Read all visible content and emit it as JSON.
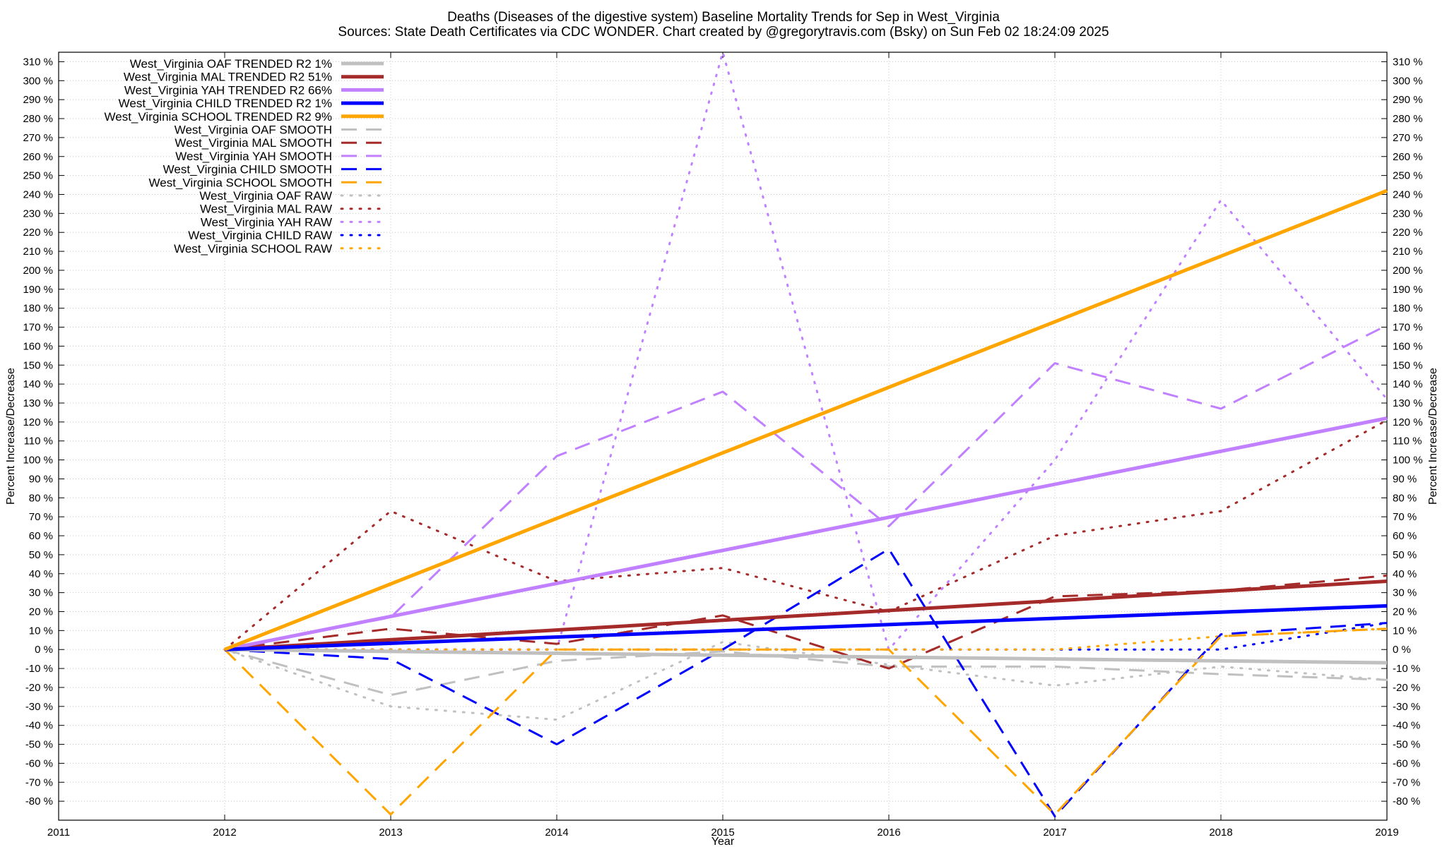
{
  "header": {
    "title_line1": "Deaths (Diseases of the digestive system)  Baseline Mortality Trends for Sep in West_Virginia",
    "title_line2": "Sources: State Death Certificates via CDC WONDER.                 Chart created by @gregorytravis.com (Bsky) on Sun Feb 02 18:24:09 2025"
  },
  "chart_data": {
    "type": "line",
    "xlabel": "Year",
    "ylabel": "Percent Increase/Decrease",
    "ylabel_right": "Percent Increase/Decrease",
    "xlim": [
      2011,
      2019
    ],
    "ylim": [
      -90,
      315
    ],
    "x_ticks": [
      2011,
      2012,
      2013,
      2014,
      2015,
      2016,
      2017,
      2018,
      2019
    ],
    "y_ticks": [
      -80,
      -70,
      -60,
      -50,
      -40,
      -30,
      -20,
      -10,
      0,
      10,
      20,
      30,
      40,
      50,
      60,
      70,
      80,
      90,
      100,
      110,
      120,
      130,
      140,
      150,
      160,
      170,
      180,
      190,
      200,
      210,
      220,
      230,
      240,
      250,
      260,
      270,
      280,
      290,
      300,
      310
    ],
    "y_tick_suffix": " %",
    "grid": true,
    "legend_position": "top-left",
    "series": [
      {
        "name": "West_Virginia OAF TRENDED R2  1%",
        "color": "#c0c0c0",
        "style": "solid",
        "x": [
          2012,
          2019
        ],
        "y": [
          0,
          -7
        ]
      },
      {
        "name": "West_Virginia MAL TRENDED R2  51%",
        "color": "#a52a2a",
        "style": "solid",
        "x": [
          2012,
          2019
        ],
        "y": [
          0,
          36
        ]
      },
      {
        "name": "West_Virginia YAH TRENDED R2  66%",
        "color": "#c080ff",
        "style": "solid",
        "x": [
          2012,
          2019
        ],
        "y": [
          0,
          122
        ]
      },
      {
        "name": "West_Virginia CHILD TRENDED R2  1%",
        "color": "#0000ff",
        "style": "solid",
        "x": [
          2012,
          2019
        ],
        "y": [
          0,
          23
        ]
      },
      {
        "name": "West_Virginia SCHOOL TRENDED R2  9%",
        "color": "#ffa500",
        "style": "solid",
        "x": [
          2012,
          2019
        ],
        "y": [
          0,
          242
        ]
      },
      {
        "name": "West_Virginia OAF SMOOTH",
        "color": "#c0c0c0",
        "style": "dashed",
        "x": [
          2012,
          2013,
          2014,
          2015,
          2016,
          2017,
          2018,
          2019
        ],
        "y": [
          0,
          -24,
          -6,
          -1,
          -9,
          -9,
          -13,
          -16
        ]
      },
      {
        "name": "West_Virginia MAL SMOOTH",
        "color": "#a52a2a",
        "style": "dashed",
        "x": [
          2012,
          2013,
          2014,
          2015,
          2016,
          2017,
          2018,
          2019
        ],
        "y": [
          0,
          11,
          3,
          18,
          -10,
          28,
          31,
          39
        ]
      },
      {
        "name": "West_Virginia YAH SMOOTH",
        "color": "#c080ff",
        "style": "dashed",
        "x": [
          2012,
          2013,
          2014,
          2015,
          2016,
          2017,
          2018,
          2019
        ],
        "y": [
          0,
          17,
          102,
          136,
          65,
          151,
          127,
          171
        ]
      },
      {
        "name": "West_Virginia CHILD SMOOTH",
        "color": "#0000ff",
        "style": "dashed",
        "x": [
          2012,
          2013,
          2014,
          2015,
          2016,
          2017,
          2018,
          2019
        ],
        "y": [
          0,
          -5,
          -50,
          0,
          53,
          -88,
          8,
          14
        ]
      },
      {
        "name": "West_Virginia SCHOOL SMOOTH",
        "color": "#ffa500",
        "style": "dashed",
        "x": [
          2012,
          2013,
          2014,
          2015,
          2016,
          2017,
          2018,
          2019
        ],
        "y": [
          0,
          -87,
          0,
          0,
          0,
          -87,
          7,
          11
        ]
      },
      {
        "name": "West_Virginia OAF RAW",
        "color": "#c0c0c0",
        "style": "dotted",
        "x": [
          2012,
          2013,
          2014,
          2015,
          2016,
          2017,
          2018,
          2019
        ],
        "y": [
          0,
          -30,
          -37,
          4,
          -8,
          -19,
          -9,
          -16
        ]
      },
      {
        "name": "West_Virginia MAL RAW",
        "color": "#a52a2a",
        "style": "dotted",
        "x": [
          2012,
          2013,
          2014,
          2015,
          2016,
          2017,
          2018,
          2019
        ],
        "y": [
          0,
          73,
          36,
          43,
          20,
          60,
          73,
          121
        ]
      },
      {
        "name": "West_Virginia YAH RAW",
        "color": "#c080ff",
        "style": "dotted",
        "x": [
          2012,
          2013,
          2014,
          2015,
          2016,
          2017,
          2018,
          2019
        ],
        "y": [
          0,
          0,
          0,
          315,
          0,
          100,
          237,
          132
        ]
      },
      {
        "name": "West_Virginia CHILD RAW",
        "color": "#0000ff",
        "style": "dotted",
        "x": [
          2012,
          2013,
          2014,
          2015,
          2016,
          2017,
          2018,
          2019
        ],
        "y": [
          0,
          0,
          0,
          0,
          0,
          0,
          0,
          14
        ]
      },
      {
        "name": "West_Virginia SCHOOL RAW",
        "color": "#ffa500",
        "style": "dotted",
        "x": [
          2012,
          2013,
          2014,
          2015,
          2016,
          2017,
          2018,
          2019
        ],
        "y": [
          0,
          0,
          0,
          0,
          0,
          0,
          7,
          11
        ]
      }
    ]
  }
}
